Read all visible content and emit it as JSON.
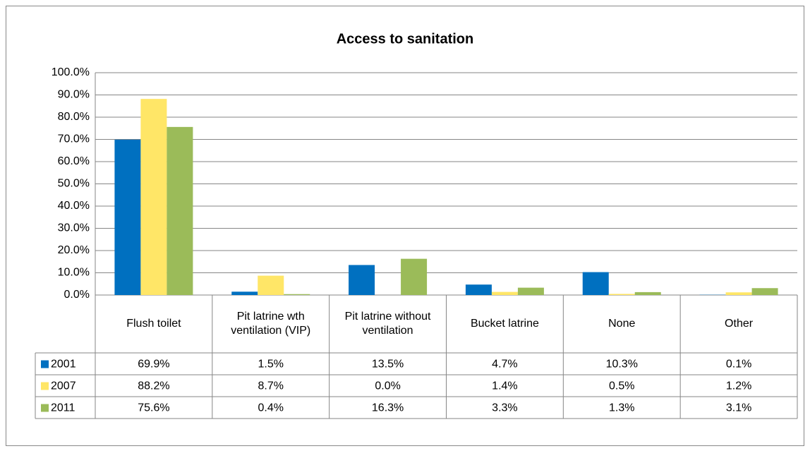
{
  "chart_data": {
    "type": "bar",
    "title": "Access to sanitation",
    "categories": [
      "Flush toilet",
      "Pit latrine wth ventilation (VIP)",
      "Pit latrine without ventilation",
      "Bucket latrine",
      "None",
      "Other"
    ],
    "series": [
      {
        "name": "2001",
        "color": "#0070c0",
        "values": [
          69.9,
          1.5,
          13.5,
          4.7,
          10.3,
          0.1
        ],
        "value_labels": [
          "69.9%",
          "1.5%",
          "13.5%",
          "4.7%",
          "10.3%",
          "0.1%"
        ]
      },
      {
        "name": "2007",
        "color": "#ffe667",
        "values": [
          88.2,
          8.7,
          0.0,
          1.4,
          0.5,
          1.2
        ],
        "value_labels": [
          "88.2%",
          "8.7%",
          "0.0%",
          "1.4%",
          "0.5%",
          "1.2%"
        ]
      },
      {
        "name": "2011",
        "color": "#9bbb59",
        "values": [
          75.6,
          0.4,
          16.3,
          3.3,
          1.3,
          3.1
        ],
        "value_labels": [
          "75.6%",
          "0.4%",
          "16.3%",
          "3.3%",
          "1.3%",
          "3.1%"
        ]
      }
    ],
    "ylim": [
      0,
      100
    ],
    "yticks": [
      {
        "value": 0,
        "label": "0.0%"
      },
      {
        "value": 10,
        "label": "10.0%"
      },
      {
        "value": 20,
        "label": "20.0%"
      },
      {
        "value": 30,
        "label": "30.0%"
      },
      {
        "value": 40,
        "label": "40.0%"
      },
      {
        "value": 50,
        "label": "50.0%"
      },
      {
        "value": 60,
        "label": "60.0%"
      },
      {
        "value": 70,
        "label": "70.0%"
      },
      {
        "value": 80,
        "label": "80.0%"
      },
      {
        "value": 90,
        "label": "90.0%"
      },
      {
        "value": 100,
        "label": "100.0%"
      }
    ],
    "grid": true
  }
}
